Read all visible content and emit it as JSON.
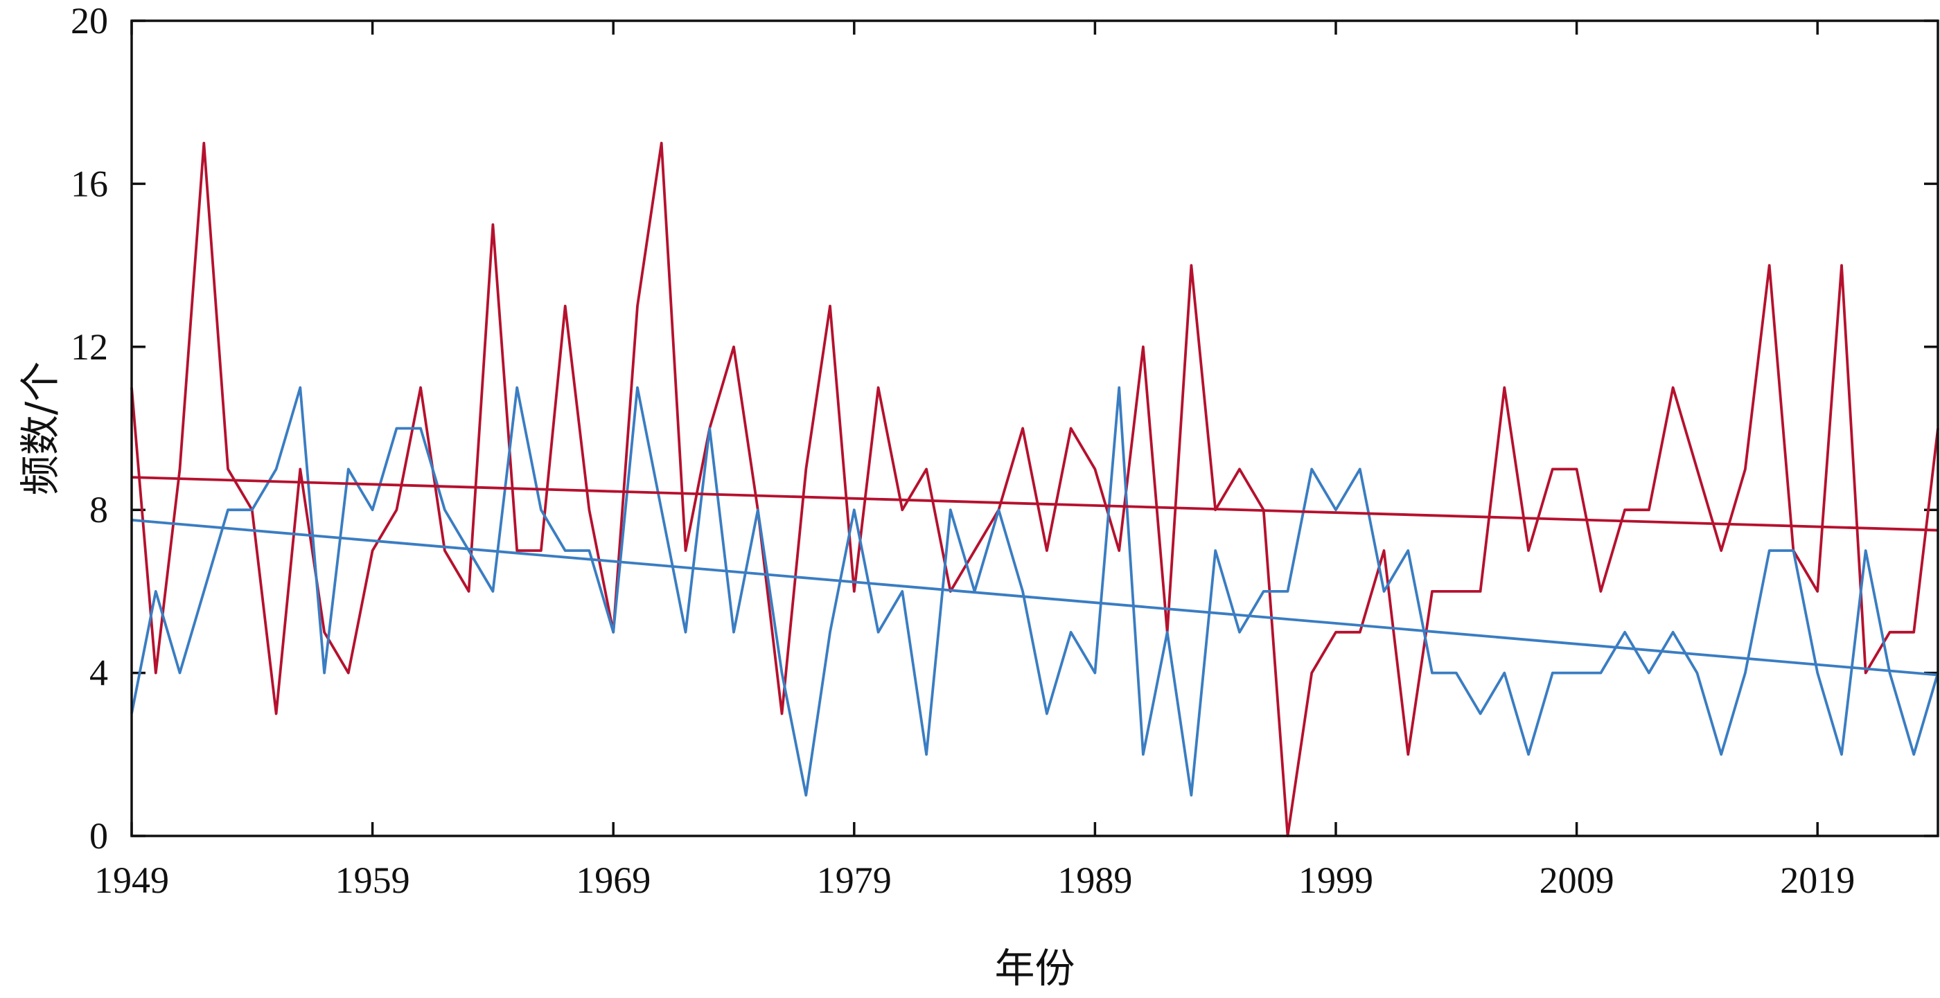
{
  "chart_data": {
    "type": "line",
    "xlabel": "年份",
    "ylabel": "频数/个",
    "xlim": [
      1949,
      2024
    ],
    "ylim": [
      0,
      20
    ],
    "xticks": [
      1949,
      1959,
      1969,
      1979,
      1989,
      1999,
      2009,
      2019
    ],
    "yticks": [
      0,
      4,
      8,
      12,
      16,
      20
    ],
    "grid": false,
    "legend": "none",
    "x": [
      1949,
      1950,
      1951,
      1952,
      1953,
      1954,
      1955,
      1956,
      1957,
      1958,
      1959,
      1960,
      1961,
      1962,
      1963,
      1964,
      1965,
      1966,
      1967,
      1968,
      1969,
      1970,
      1971,
      1972,
      1973,
      1974,
      1975,
      1976,
      1977,
      1978,
      1979,
      1980,
      1981,
      1982,
      1983,
      1984,
      1985,
      1986,
      1987,
      1988,
      1989,
      1990,
      1991,
      1992,
      1993,
      1994,
      1995,
      1996,
      1997,
      1998,
      1999,
      2000,
      2001,
      2002,
      2003,
      2004,
      2005,
      2006,
      2007,
      2008,
      2009,
      2010,
      2011,
      2012,
      2013,
      2014,
      2015,
      2016,
      2017,
      2018,
      2019,
      2020,
      2021,
      2022,
      2023,
      2024
    ],
    "series": [
      {
        "color": "#b5112e",
        "values": [
          11,
          4,
          9,
          17,
          9,
          8,
          3,
          9,
          5,
          4,
          7,
          8,
          11,
          7,
          6,
          15,
          7,
          7,
          13,
          8,
          5,
          13,
          17,
          7,
          10,
          12,
          8,
          3,
          9,
          13,
          6,
          11,
          8,
          9,
          6,
          7,
          8,
          10,
          7,
          10,
          9,
          7,
          12,
          5,
          14,
          8,
          9,
          8,
          0,
          4,
          5,
          5,
          7,
          2,
          6,
          6,
          6,
          11,
          7,
          9,
          9,
          6,
          8,
          8,
          11,
          9,
          7,
          9,
          14,
          7,
          6,
          14,
          4,
          5,
          5,
          10
        ]
      },
      {
        "color": "#3a7dc2",
        "values": [
          3,
          6,
          4,
          6,
          8,
          8,
          9,
          11,
          4,
          9,
          8,
          10,
          10,
          8,
          7,
          6,
          11,
          8,
          7,
          7,
          5,
          11,
          8,
          5,
          10,
          5,
          8,
          4,
          1,
          5,
          8,
          5,
          6,
          2,
          8,
          6,
          8,
          6,
          3,
          5,
          4,
          11,
          2,
          5,
          1,
          7,
          5,
          6,
          6,
          9,
          8,
          9,
          6,
          7,
          4,
          4,
          3,
          4,
          2,
          4,
          4,
          4,
          5,
          4,
          5,
          4,
          2,
          4,
          7,
          7,
          4,
          2,
          7,
          4,
          2,
          4
        ]
      },
      {
        "color": "#b5112e",
        "type": "trend",
        "values_at_xlim": [
          8.8,
          7.5
        ]
      },
      {
        "color": "#3a7dc2",
        "type": "trend",
        "values_at_xlim": [
          7.75,
          3.95
        ]
      }
    ]
  }
}
